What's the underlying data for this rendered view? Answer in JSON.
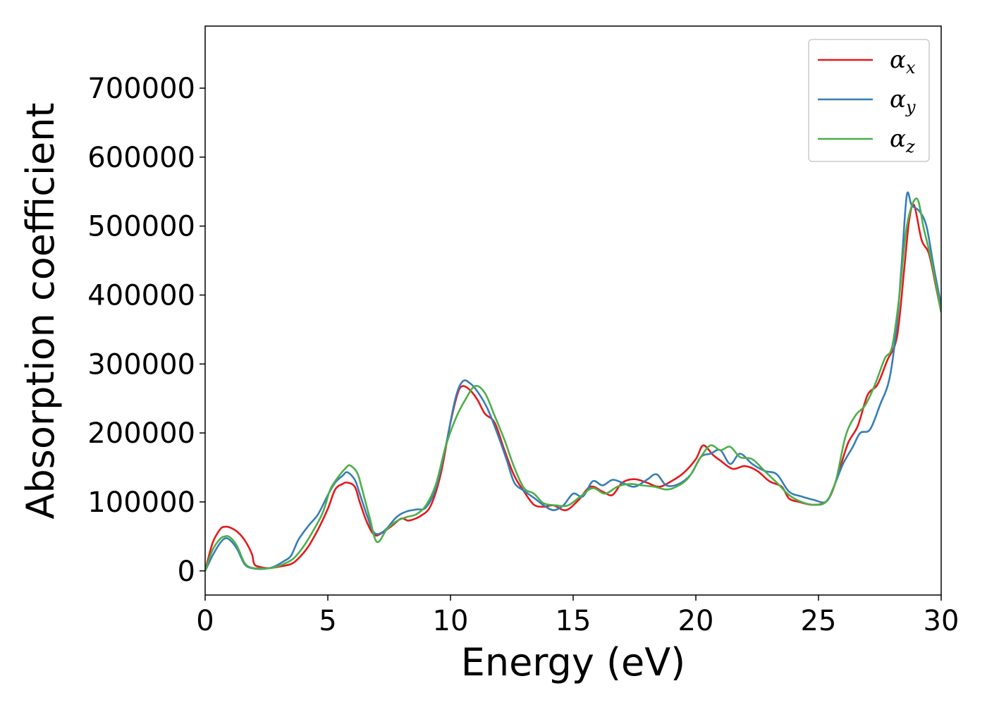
{
  "chart_data": {
    "type": "line",
    "title": "",
    "xlabel": "Energy (eV)",
    "ylabel": "Absorption coefficient",
    "xlim": [
      0,
      30
    ],
    "ylim": [
      -35000,
      790000
    ],
    "xticks": [
      0,
      5,
      10,
      15,
      20,
      25,
      30
    ],
    "yticks": [
      0,
      100000,
      200000,
      300000,
      400000,
      500000,
      600000,
      700000
    ],
    "grid": false,
    "legend": {
      "position": "top-right",
      "entries": [
        {
          "symbol": "α",
          "sub": "x",
          "color": "#e41a1c"
        },
        {
          "symbol": "α",
          "sub": "y",
          "color": "#377eb8"
        },
        {
          "symbol": "α",
          "sub": "z",
          "color": "#4daf4a"
        }
      ]
    },
    "series": [
      {
        "color": "#e41a1c",
        "points": [
          [
            0,
            0
          ],
          [
            0.3,
            40000
          ],
          [
            0.6,
            60000
          ],
          [
            0.8,
            64000
          ],
          [
            1.0,
            63000
          ],
          [
            1.3,
            57000
          ],
          [
            1.6,
            45000
          ],
          [
            1.9,
            25000
          ],
          [
            2.0,
            10000
          ],
          [
            2.2,
            6000
          ],
          [
            2.6,
            4000
          ],
          [
            3.0,
            6000
          ],
          [
            3.5,
            10000
          ],
          [
            3.8,
            18000
          ],
          [
            4.2,
            35000
          ],
          [
            4.6,
            60000
          ],
          [
            5.0,
            90000
          ],
          [
            5.3,
            118000
          ],
          [
            5.6,
            126000
          ],
          [
            5.8,
            128000
          ],
          [
            6.1,
            122000
          ],
          [
            6.3,
            100000
          ],
          [
            6.6,
            70000
          ],
          [
            6.9,
            52000
          ],
          [
            7.2,
            55000
          ],
          [
            7.6,
            65000
          ],
          [
            8.0,
            76000
          ],
          [
            8.3,
            73000
          ],
          [
            8.8,
            80000
          ],
          [
            9.2,
            95000
          ],
          [
            9.6,
            140000
          ],
          [
            10.0,
            215000
          ],
          [
            10.3,
            258000
          ],
          [
            10.5,
            268000
          ],
          [
            10.8,
            262000
          ],
          [
            11.1,
            248000
          ],
          [
            11.4,
            228000
          ],
          [
            11.8,
            215000
          ],
          [
            12.2,
            175000
          ],
          [
            12.6,
            138000
          ],
          [
            13.0,
            115000
          ],
          [
            13.4,
            96000
          ],
          [
            13.8,
            93000
          ],
          [
            14.2,
            95000
          ],
          [
            14.7,
            88000
          ],
          [
            15.2,
            102000
          ],
          [
            15.7,
            122000
          ],
          [
            16.2,
            115000
          ],
          [
            16.6,
            110000
          ],
          [
            17.0,
            128000
          ],
          [
            17.5,
            133000
          ],
          [
            18.0,
            128000
          ],
          [
            18.5,
            122000
          ],
          [
            19.0,
            130000
          ],
          [
            19.5,
            142000
          ],
          [
            20.0,
            162000
          ],
          [
            20.3,
            182000
          ],
          [
            20.7,
            168000
          ],
          [
            21.0,
            160000
          ],
          [
            21.5,
            148000
          ],
          [
            22.0,
            152000
          ],
          [
            22.5,
            145000
          ],
          [
            23.0,
            130000
          ],
          [
            23.5,
            122000
          ],
          [
            23.8,
            105000
          ],
          [
            24.2,
            100000
          ],
          [
            24.7,
            96000
          ],
          [
            25.2,
            98000
          ],
          [
            25.5,
            110000
          ],
          [
            25.8,
            140000
          ],
          [
            26.2,
            185000
          ],
          [
            26.6,
            210000
          ],
          [
            27.0,
            255000
          ],
          [
            27.4,
            270000
          ],
          [
            27.8,
            305000
          ],
          [
            28.2,
            340000
          ],
          [
            28.5,
            440000
          ],
          [
            28.7,
            510000
          ],
          [
            28.9,
            530000
          ],
          [
            29.2,
            480000
          ],
          [
            29.5,
            460000
          ],
          [
            29.8,
            410000
          ],
          [
            30,
            375000
          ]
        ]
      },
      {
        "color": "#377eb8",
        "points": [
          [
            0,
            0
          ],
          [
            0.3,
            22000
          ],
          [
            0.6,
            40000
          ],
          [
            0.8,
            47000
          ],
          [
            1.0,
            45000
          ],
          [
            1.3,
            32000
          ],
          [
            1.6,
            10000
          ],
          [
            1.9,
            4000
          ],
          [
            2.4,
            3000
          ],
          [
            2.8,
            6000
          ],
          [
            3.2,
            14000
          ],
          [
            3.5,
            22000
          ],
          [
            3.8,
            45000
          ],
          [
            4.2,
            65000
          ],
          [
            4.6,
            82000
          ],
          [
            5.0,
            110000
          ],
          [
            5.3,
            128000
          ],
          [
            5.6,
            138000
          ],
          [
            5.8,
            143000
          ],
          [
            6.1,
            132000
          ],
          [
            6.3,
            112000
          ],
          [
            6.6,
            80000
          ],
          [
            6.9,
            55000
          ],
          [
            7.3,
            58000
          ],
          [
            7.8,
            78000
          ],
          [
            8.2,
            86000
          ],
          [
            8.6,
            89000
          ],
          [
            9.0,
            92000
          ],
          [
            9.4,
            120000
          ],
          [
            9.8,
            180000
          ],
          [
            10.2,
            250000
          ],
          [
            10.5,
            275000
          ],
          [
            10.8,
            272000
          ],
          [
            11.1,
            260000
          ],
          [
            11.5,
            236000
          ],
          [
            11.9,
            200000
          ],
          [
            12.3,
            160000
          ],
          [
            12.6,
            128000
          ],
          [
            13.0,
            116000
          ],
          [
            13.4,
            106000
          ],
          [
            13.8,
            95000
          ],
          [
            14.2,
            88000
          ],
          [
            14.6,
            95000
          ],
          [
            15.0,
            112000
          ],
          [
            15.4,
            108000
          ],
          [
            15.8,
            130000
          ],
          [
            16.2,
            124000
          ],
          [
            16.6,
            132000
          ],
          [
            17.0,
            128000
          ],
          [
            17.5,
            122000
          ],
          [
            18.0,
            132000
          ],
          [
            18.4,
            140000
          ],
          [
            18.8,
            124000
          ],
          [
            19.3,
            126000
          ],
          [
            19.8,
            140000
          ],
          [
            20.2,
            165000
          ],
          [
            20.6,
            170000
          ],
          [
            21.0,
            175000
          ],
          [
            21.4,
            155000
          ],
          [
            21.8,
            170000
          ],
          [
            22.3,
            155000
          ],
          [
            22.8,
            145000
          ],
          [
            23.3,
            140000
          ],
          [
            23.8,
            115000
          ],
          [
            24.3,
            108000
          ],
          [
            24.8,
            103000
          ],
          [
            25.3,
            100000
          ],
          [
            25.6,
            120000
          ],
          [
            26.0,
            155000
          ],
          [
            26.4,
            180000
          ],
          [
            26.7,
            200000
          ],
          [
            27.1,
            205000
          ],
          [
            27.5,
            240000
          ],
          [
            27.9,
            280000
          ],
          [
            28.2,
            360000
          ],
          [
            28.4,
            450000
          ],
          [
            28.6,
            545000
          ],
          [
            28.8,
            530000
          ],
          [
            29.1,
            522000
          ],
          [
            29.4,
            500000
          ],
          [
            29.7,
            440000
          ],
          [
            30,
            385000
          ]
        ]
      },
      {
        "color": "#4daf4a",
        "points": [
          [
            0,
            0
          ],
          [
            0.3,
            30000
          ],
          [
            0.6,
            46000
          ],
          [
            0.8,
            50000
          ],
          [
            1.0,
            49000
          ],
          [
            1.3,
            36000
          ],
          [
            1.6,
            12000
          ],
          [
            1.9,
            4500
          ],
          [
            2.4,
            3500
          ],
          [
            2.8,
            5000
          ],
          [
            3.2,
            10000
          ],
          [
            3.6,
            18000
          ],
          [
            4.0,
            35000
          ],
          [
            4.4,
            58000
          ],
          [
            4.8,
            85000
          ],
          [
            5.1,
            118000
          ],
          [
            5.4,
            135000
          ],
          [
            5.7,
            148000
          ],
          [
            5.9,
            153000
          ],
          [
            6.2,
            142000
          ],
          [
            6.4,
            118000
          ],
          [
            6.7,
            78000
          ],
          [
            7.0,
            42000
          ],
          [
            7.4,
            60000
          ],
          [
            7.8,
            72000
          ],
          [
            8.2,
            78000
          ],
          [
            8.6,
            82000
          ],
          [
            9.0,
            95000
          ],
          [
            9.4,
            125000
          ],
          [
            9.8,
            180000
          ],
          [
            10.2,
            220000
          ],
          [
            10.6,
            248000
          ],
          [
            11.0,
            268000
          ],
          [
            11.4,
            258000
          ],
          [
            11.8,
            225000
          ],
          [
            12.2,
            190000
          ],
          [
            12.6,
            150000
          ],
          [
            13.0,
            120000
          ],
          [
            13.4,
            112000
          ],
          [
            13.8,
            98000
          ],
          [
            14.3,
            95000
          ],
          [
            14.8,
            95000
          ],
          [
            15.3,
            108000
          ],
          [
            15.8,
            120000
          ],
          [
            16.3,
            112000
          ],
          [
            16.8,
            122000
          ],
          [
            17.3,
            126000
          ],
          [
            17.8,
            124000
          ],
          [
            18.3,
            122000
          ],
          [
            18.8,
            118000
          ],
          [
            19.2,
            122000
          ],
          [
            19.7,
            135000
          ],
          [
            20.2,
            165000
          ],
          [
            20.6,
            182000
          ],
          [
            21.0,
            175000
          ],
          [
            21.4,
            180000
          ],
          [
            21.8,
            165000
          ],
          [
            22.3,
            162000
          ],
          [
            22.8,
            145000
          ],
          [
            23.3,
            128000
          ],
          [
            23.8,
            110000
          ],
          [
            24.3,
            100000
          ],
          [
            24.8,
            96000
          ],
          [
            25.3,
            100000
          ],
          [
            25.7,
            130000
          ],
          [
            26.1,
            195000
          ],
          [
            26.5,
            225000
          ],
          [
            26.9,
            240000
          ],
          [
            27.3,
            270000
          ],
          [
            27.7,
            308000
          ],
          [
            28.0,
            325000
          ],
          [
            28.3,
            400000
          ],
          [
            28.6,
            500000
          ],
          [
            29.0,
            540000
          ],
          [
            29.3,
            495000
          ],
          [
            29.6,
            450000
          ],
          [
            30,
            375000
          ]
        ]
      }
    ]
  }
}
